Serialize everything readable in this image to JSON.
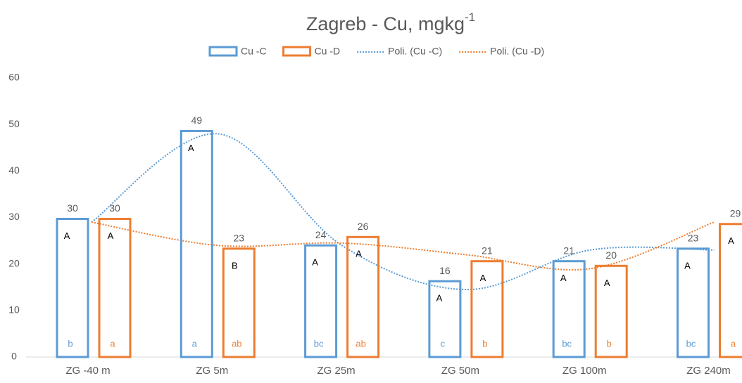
{
  "chart_data": {
    "type": "bar",
    "title": "Zagreb - Cu, mgkg",
    "title_superscript": "-1",
    "categories": [
      "ZG -40 m",
      "ZG 5m",
      "ZG 25m",
      "ZG 50m",
      "ZG 100m",
      "ZG 240m"
    ],
    "series": [
      {
        "name": "Cu -C",
        "color": "#5b9bd5",
        "values": [
          29.7,
          48.6,
          24,
          16.3,
          20.6,
          23.3
        ],
        "value_labels": [
          "30",
          "49",
          "24",
          "16",
          "21",
          "23"
        ],
        "upper_letters": [
          "A",
          "A",
          "A",
          "A",
          "A",
          "A"
        ],
        "lower_letters": [
          "b",
          "a",
          "bc",
          "c",
          "bc",
          "bc"
        ]
      },
      {
        "name": "Cu -D",
        "color": "#ed7d31",
        "values": [
          29.7,
          23.3,
          25.8,
          20.6,
          19.6,
          28.6
        ],
        "value_labels": [
          "30",
          "23",
          "26",
          "21",
          "20",
          "29"
        ],
        "upper_letters": [
          "A",
          "B",
          "A",
          "A",
          "A",
          "A"
        ],
        "lower_letters": [
          "a",
          "ab",
          "ab",
          "b",
          "b",
          "a"
        ]
      }
    ],
    "trendlines": [
      {
        "name": "Poli. (Cu -C)",
        "color": "#5b9bd5",
        "values": [
          29,
          48,
          24,
          14.5,
          23,
          23
        ]
      },
      {
        "name": "Poli. (Cu -D)",
        "color": "#ed7d31",
        "values": [
          29,
          24,
          24.5,
          22,
          19,
          29
        ]
      }
    ],
    "ylim": [
      0,
      60
    ],
    "yticks": [
      0,
      10,
      20,
      30,
      40,
      50,
      60
    ],
    "grid": false
  }
}
